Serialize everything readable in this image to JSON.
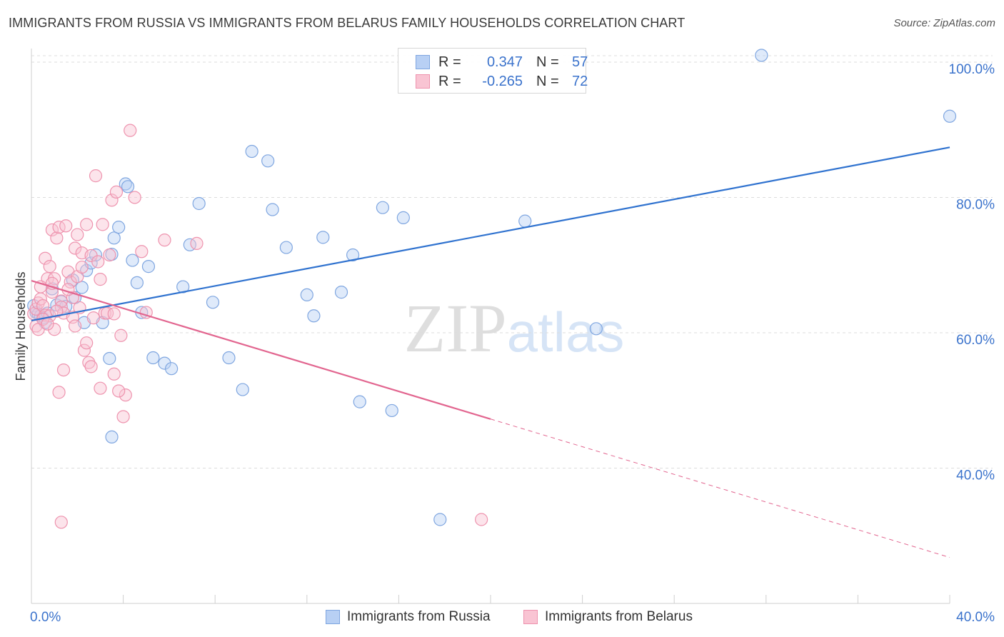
{
  "header": {
    "title": "IMMIGRANTS FROM RUSSIA VS IMMIGRANTS FROM BELARUS FAMILY HOUSEHOLDS CORRELATION CHART",
    "source": "Source: ZipAtlas.com"
  },
  "legend": {
    "russia": {
      "r_label": "R =",
      "r_value": "0.347",
      "n_label": "N =",
      "n_value": "57"
    },
    "belarus": {
      "r_label": "R =",
      "r_value": "-0.265",
      "n_label": "N =",
      "n_value": "72"
    }
  },
  "colors": {
    "russia_fill": "#b8d0f4",
    "russia_stroke": "#7fa6e0",
    "russia_line": "#2f72cf",
    "belarus_fill": "#f9c4d3",
    "belarus_stroke": "#ee93ae",
    "belarus_line": "#e2658f",
    "tick_label": "#3b73cc",
    "grid": "#dcdcdc"
  },
  "chart_data": {
    "type": "scatter",
    "title": "IMMIGRANTS FROM RUSSIA VS IMMIGRANTS FROM BELARUS FAMILY HOUSEHOLDS CORRELATION CHART",
    "xlabel": "",
    "ylabel": "Family Households",
    "xlim": [
      0,
      40
    ],
    "ylim": [
      20,
      102
    ],
    "x_tick_labels": [
      "0.0%",
      "40.0%"
    ],
    "y_ticks": [
      40,
      60,
      80,
      100
    ],
    "y_tick_labels": [
      "40.0%",
      "60.0%",
      "80.0%",
      "100.0%"
    ],
    "grid": true,
    "legend_position": "top-center",
    "watermark": "ZIPatlas",
    "series": [
      {
        "name": "Immigrants from Russia",
        "r": 0.347,
        "n": 57,
        "trend": {
          "x0": 0,
          "y0": 61.8,
          "x1": 40,
          "y1": 87.4,
          "dashed_from_x": null
        },
        "points": [
          [
            0.1,
            64.0
          ],
          [
            0.2,
            63.0
          ],
          [
            0.3,
            62.8
          ],
          [
            0.4,
            62.5
          ],
          [
            0.5,
            62.2
          ],
          [
            0.6,
            61.5
          ],
          [
            0.7,
            62.9
          ],
          [
            0.9,
            66.5
          ],
          [
            1.1,
            64.1
          ],
          [
            1.3,
            64.6
          ],
          [
            1.5,
            63.9
          ],
          [
            1.8,
            67.8
          ],
          [
            1.9,
            65.2
          ],
          [
            2.2,
            66.7
          ],
          [
            2.4,
            69.2
          ],
          [
            2.6,
            70.3
          ],
          [
            2.8,
            71.5
          ],
          [
            2.3,
            61.5
          ],
          [
            3.1,
            61.5
          ],
          [
            3.4,
            56.2
          ],
          [
            3.5,
            71.6
          ],
          [
            3.6,
            74.0
          ],
          [
            3.8,
            75.6
          ],
          [
            4.1,
            82.0
          ],
          [
            4.2,
            81.6
          ],
          [
            4.4,
            70.7
          ],
          [
            4.6,
            67.4
          ],
          [
            4.8,
            63.0
          ],
          [
            5.1,
            69.8
          ],
          [
            5.3,
            56.3
          ],
          [
            5.8,
            55.5
          ],
          [
            6.1,
            54.7
          ],
          [
            6.6,
            66.8
          ],
          [
            6.9,
            73.0
          ],
          [
            7.3,
            79.1
          ],
          [
            7.9,
            64.5
          ],
          [
            8.6,
            56.3
          ],
          [
            9.2,
            51.6
          ],
          [
            9.6,
            86.8
          ],
          [
            10.3,
            85.4
          ],
          [
            10.5,
            78.2
          ],
          [
            11.1,
            72.6
          ],
          [
            12.0,
            65.6
          ],
          [
            12.3,
            62.5
          ],
          [
            12.7,
            74.1
          ],
          [
            13.5,
            66.0
          ],
          [
            14.0,
            71.5
          ],
          [
            14.3,
            49.8
          ],
          [
            15.3,
            78.5
          ],
          [
            15.7,
            48.5
          ],
          [
            16.2,
            77.0
          ],
          [
            17.8,
            32.4
          ],
          [
            21.5,
            76.5
          ],
          [
            24.6,
            60.6
          ],
          [
            31.8,
            101.0
          ],
          [
            40.0,
            92.0
          ],
          [
            3.5,
            44.6
          ]
        ]
      },
      {
        "name": "Immigrants from Belarus",
        "r": -0.265,
        "n": 72,
        "trend": {
          "x0": 0,
          "y0": 67.7,
          "x1": 40,
          "y1": 26.8,
          "dashed_from_x": 20
        },
        "points": [
          [
            0.1,
            62.8
          ],
          [
            0.2,
            63.5
          ],
          [
            0.2,
            61.0
          ],
          [
            0.3,
            60.5
          ],
          [
            0.3,
            64.4
          ],
          [
            0.4,
            65.0
          ],
          [
            0.5,
            64.0
          ],
          [
            0.6,
            62.6
          ],
          [
            0.6,
            71.0
          ],
          [
            0.7,
            68.0
          ],
          [
            0.8,
            69.8
          ],
          [
            0.8,
            62.5
          ],
          [
            0.9,
            66.0
          ],
          [
            0.9,
            75.2
          ],
          [
            1.0,
            68.0
          ],
          [
            1.0,
            60.5
          ],
          [
            1.1,
            74.0
          ],
          [
            1.2,
            75.6
          ],
          [
            1.3,
            64.7
          ],
          [
            1.3,
            63.8
          ],
          [
            1.4,
            62.9
          ],
          [
            1.5,
            75.8
          ],
          [
            1.6,
            69.0
          ],
          [
            1.7,
            67.5
          ],
          [
            1.8,
            65.2
          ],
          [
            1.9,
            72.5
          ],
          [
            2.0,
            74.5
          ],
          [
            1.8,
            62.3
          ],
          [
            1.9,
            61.0
          ],
          [
            2.1,
            63.7
          ],
          [
            2.2,
            71.8
          ],
          [
            2.4,
            76.0
          ],
          [
            2.6,
            71.4
          ],
          [
            2.8,
            83.2
          ],
          [
            2.9,
            70.5
          ],
          [
            3.1,
            76.0
          ],
          [
            3.2,
            62.9
          ],
          [
            3.4,
            71.5
          ],
          [
            3.5,
            79.6
          ],
          [
            3.7,
            80.8
          ],
          [
            3.9,
            59.6
          ],
          [
            4.1,
            50.8
          ],
          [
            4.3,
            89.9
          ],
          [
            4.5,
            80.0
          ],
          [
            2.3,
            57.4
          ],
          [
            2.5,
            55.6
          ],
          [
            2.6,
            55.0
          ],
          [
            2.7,
            62.2
          ],
          [
            3.0,
            51.8
          ],
          [
            3.3,
            62.9
          ],
          [
            3.6,
            53.9
          ],
          [
            3.8,
            51.4
          ],
          [
            4.0,
            47.6
          ],
          [
            4.8,
            72.0
          ],
          [
            5.0,
            63.0
          ],
          [
            5.8,
            73.7
          ],
          [
            7.2,
            73.2
          ],
          [
            1.2,
            51.2
          ],
          [
            1.4,
            54.5
          ],
          [
            2.4,
            58.5
          ],
          [
            19.6,
            32.4
          ],
          [
            1.3,
            32.0
          ],
          [
            0.5,
            62.0
          ],
          [
            0.7,
            61.3
          ],
          [
            1.1,
            63.2
          ],
          [
            1.6,
            66.4
          ],
          [
            2.0,
            68.3
          ],
          [
            2.2,
            69.7
          ],
          [
            0.4,
            66.8
          ],
          [
            0.9,
            67.3
          ],
          [
            3.0,
            67.9
          ],
          [
            3.6,
            62.8
          ]
        ]
      }
    ]
  },
  "bottom_legend": {
    "russia_label": "Immigrants from Russia",
    "belarus_label": "Immigrants from Belarus"
  }
}
